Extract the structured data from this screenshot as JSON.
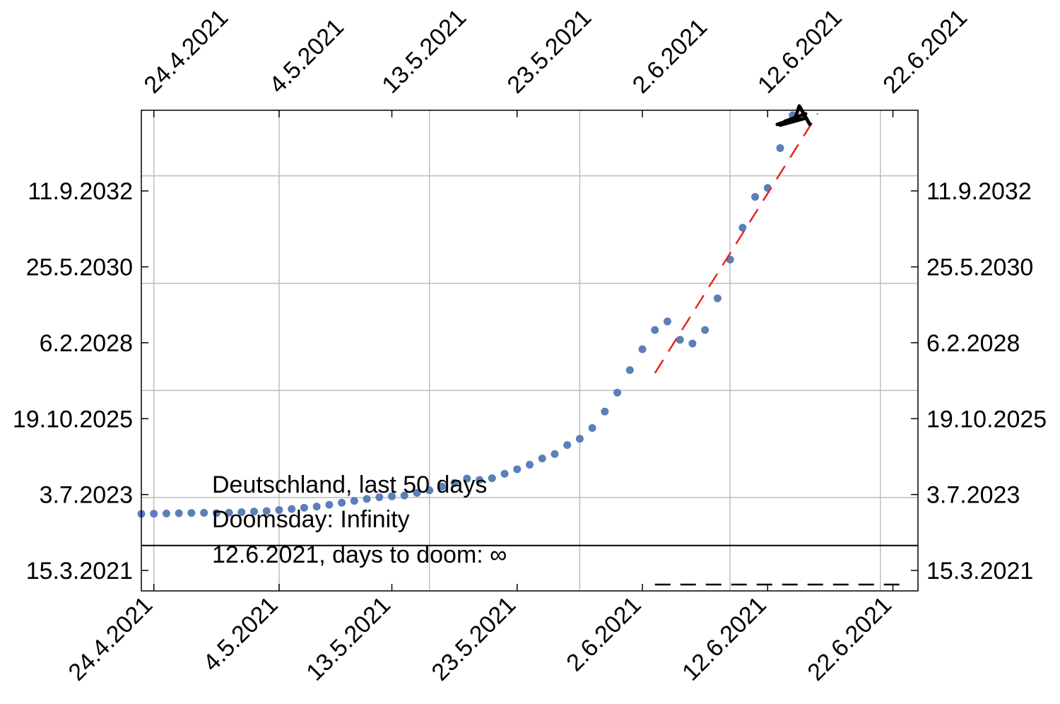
{
  "chart_data": {
    "type": "scatter",
    "x_axis": {
      "scale": "date",
      "range": [
        "2021-04-23",
        "2021-06-24"
      ],
      "tick_labels": [
        "24.4.2021",
        "4.5.2021",
        "13.5.2021",
        "23.5.2021",
        "2.6.2021",
        "12.6.2021",
        "22.6.2021"
      ],
      "tick_dates": [
        "2021-04-24",
        "2021-05-04",
        "2021-05-13",
        "2021-05-23",
        "2021-06-02",
        "2021-06-12",
        "2021-06-22"
      ],
      "grid_dates": [
        "2021-04-24",
        "2021-05-04",
        "2021-05-16",
        "2021-05-28",
        "2021-06-09",
        "2021-06-21"
      ]
    },
    "y_axis": {
      "scale": "date",
      "range": [
        "2020-08-01",
        "2035-02-20"
      ],
      "tick_labels": [
        "15.3.2021",
        "3.7.2023",
        "19.10.2025",
        "6.2.2028",
        "25.5.2030",
        "11.9.2032"
      ],
      "tick_dates": [
        "2021-03-15",
        "2023-07-03",
        "2025-10-19",
        "2028-02-06",
        "2030-05-25",
        "2032-09-11"
      ],
      "grid_dates": [
        "2023-05-31",
        "2026-08-27",
        "2029-11-24",
        "2033-02-25"
      ]
    },
    "grid": true,
    "series": [
      {
        "marker": "dot",
        "color": "#5b7fb8",
        "points": [
          [
            "2021-04-23",
            "2022-12-01"
          ],
          [
            "2021-04-24",
            "2022-12-03"
          ],
          [
            "2021-04-25",
            "2022-12-05"
          ],
          [
            "2021-04-26",
            "2022-12-08"
          ],
          [
            "2021-04-27",
            "2022-12-11"
          ],
          [
            "2021-04-28",
            "2022-12-13"
          ],
          [
            "2021-04-29",
            "2022-12-09"
          ],
          [
            "2021-04-30",
            "2022-12-14"
          ],
          [
            "2021-05-01",
            "2022-12-20"
          ],
          [
            "2021-05-02",
            "2022-12-27"
          ],
          [
            "2021-05-03",
            "2023-01-01"
          ],
          [
            "2021-05-04",
            "2023-01-13"
          ],
          [
            "2021-05-05",
            "2023-01-24"
          ],
          [
            "2021-05-06",
            "2023-02-07"
          ],
          [
            "2021-05-07",
            "2023-02-20"
          ],
          [
            "2021-05-08",
            "2023-03-12"
          ],
          [
            "2021-05-09",
            "2023-04-03"
          ],
          [
            "2021-05-10",
            "2023-04-24"
          ],
          [
            "2021-05-11",
            "2023-05-15"
          ],
          [
            "2021-05-12",
            "2023-06-03"
          ],
          [
            "2021-05-13",
            "2023-06-13"
          ],
          [
            "2021-05-14",
            "2023-06-22"
          ],
          [
            "2021-05-15",
            "2023-07-21"
          ],
          [
            "2021-05-16",
            "2023-08-19"
          ],
          [
            "2021-05-17",
            "2023-09-29"
          ],
          [
            "2021-05-18",
            "2023-11-08"
          ],
          [
            "2021-05-19",
            "2023-12-27"
          ],
          [
            "2021-05-20",
            "2023-12-11"
          ],
          [
            "2021-05-21",
            "2023-12-30"
          ],
          [
            "2021-05-22",
            "2024-02-18"
          ],
          [
            "2021-05-23",
            "2024-04-08"
          ],
          [
            "2021-05-24",
            "2024-05-28"
          ],
          [
            "2021-05-25",
            "2024-08-05"
          ],
          [
            "2021-05-26",
            "2024-09-23"
          ],
          [
            "2021-05-27",
            "2024-12-31"
          ],
          [
            "2021-05-28",
            "2025-03-11"
          ],
          [
            "2021-05-29",
            "2025-07-08"
          ],
          [
            "2021-05-30",
            "2026-01-06"
          ],
          [
            "2021-05-31",
            "2026-08-03"
          ],
          [
            "2021-06-01",
            "2027-04-09"
          ],
          [
            "2021-06-02",
            "2027-11-26"
          ],
          [
            "2021-06-03",
            "2028-06-26"
          ],
          [
            "2021-06-04",
            "2028-09-28"
          ],
          [
            "2021-06-05",
            "2028-03-09"
          ],
          [
            "2021-06-06",
            "2028-01-28"
          ],
          [
            "2021-06-07",
            "2028-06-26"
          ],
          [
            "2021-06-08",
            "2029-06-11"
          ],
          [
            "2021-06-09",
            "2030-08-14"
          ],
          [
            "2021-06-10",
            "2031-08-01"
          ],
          [
            "2021-06-11",
            "2032-07-07"
          ],
          [
            "2021-06-12",
            "2032-10-14"
          ],
          [
            "2021-06-13",
            "2033-12-29"
          ],
          [
            "2021-06-14",
            "2034-12-27"
          ]
        ]
      },
      {
        "style": "dashed",
        "color": "#e8231f",
        "points": [
          [
            "2021-06-03",
            "2027-03-07"
          ],
          [
            "2021-06-16",
            "2035-01-14"
          ]
        ]
      },
      {
        "style": "dashed",
        "color": "#000000",
        "points": [
          [
            "2021-06-03",
            "2020-10-10"
          ],
          [
            "2021-06-23",
            "2020-10-10"
          ]
        ]
      }
    ],
    "reference_line": {
      "y": "2021-12-16",
      "color": "#000000"
    },
    "annotations": [
      "Deutschland, last 50 days",
      "Doomsday: Infinity",
      "12.6.2021, days to doom: ∞"
    ]
  }
}
